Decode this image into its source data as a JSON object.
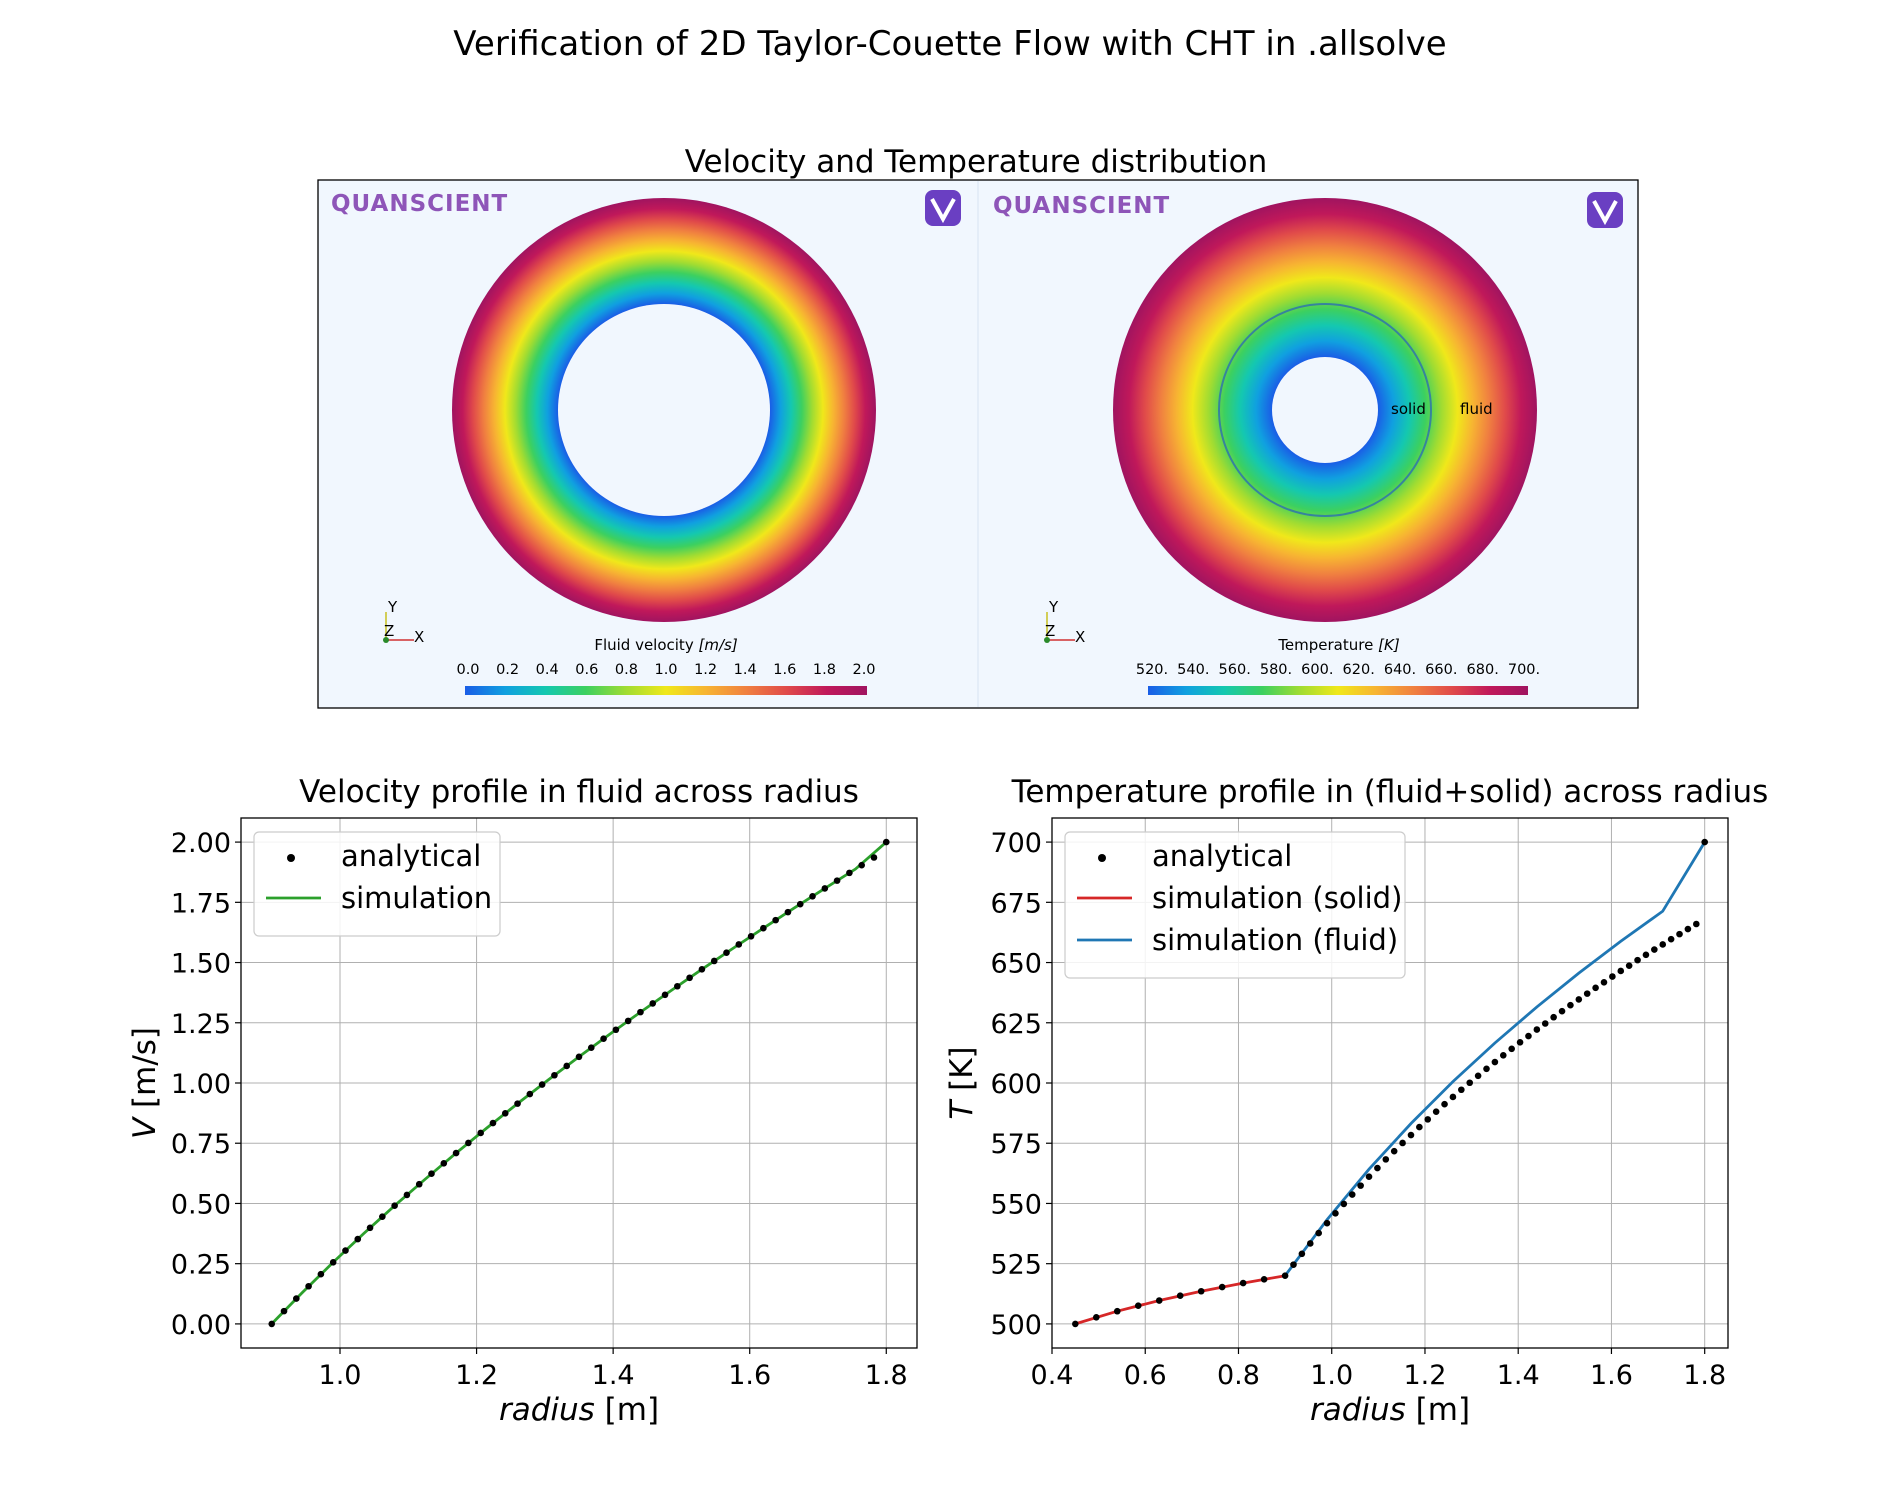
{
  "figure": {
    "title": "Verification of 2D Taylor-Couette Flow with CHT in .allsolve"
  },
  "render_panel": {
    "title": "Velocity and Temperature distribution",
    "left": {
      "brand": "QUANSCIENT",
      "colorbar_label_text": "Fluid velocity",
      "colorbar_label_unit": "[m/s]",
      "colorbar_ticks": [
        "0.0",
        "0.2",
        "0.4",
        "0.6",
        "0.8",
        "1.0",
        "1.2",
        "1.4",
        "1.6",
        "1.8",
        "2.0"
      ],
      "triad": {
        "y": "Y",
        "z": "Z",
        "x": "X"
      }
    },
    "right": {
      "brand": "QUANSCIENT",
      "colorbar_label_text": "Temperature",
      "colorbar_label_unit": "[K]",
      "colorbar_ticks": [
        "520.",
        "540.",
        "560.",
        "580.",
        "600.",
        "620.",
        "640.",
        "660.",
        "680.",
        "700."
      ],
      "region_labels": {
        "solid": "solid",
        "fluid": "fluid"
      },
      "triad": {
        "y": "Y",
        "z": "Z",
        "x": "X"
      }
    },
    "colormap": [
      "#1a5de6",
      "#10a0e0",
      "#14c8b0",
      "#3cd060",
      "#a0dc32",
      "#f0e81a",
      "#f7b432",
      "#f08040",
      "#e04a4a",
      "#c0185a",
      "#a01460"
    ]
  },
  "chart_data": [
    {
      "type": "line",
      "title": "Velocity profile in fluid across radius",
      "xlabel_text": "radius",
      "xlabel_unit": "[m]",
      "ylabel_text": "V",
      "ylabel_unit": "[m/s]",
      "xlim": [
        0.855,
        1.845
      ],
      "ylim": [
        -0.1,
        2.1
      ],
      "xticks": [
        1.0,
        1.2,
        1.4,
        1.6,
        1.8
      ],
      "xtick_labels": [
        "1.0",
        "1.2",
        "1.4",
        "1.6",
        "1.8"
      ],
      "yticks": [
        0.0,
        0.25,
        0.5,
        0.75,
        1.0,
        1.25,
        1.5,
        1.75,
        2.0
      ],
      "ytick_labels": [
        "0.00",
        "0.25",
        "0.50",
        "0.75",
        "1.00",
        "1.25",
        "1.50",
        "1.75",
        "2.00"
      ],
      "grid": true,
      "legend_position": "upper-left",
      "series": [
        {
          "name": "analytical",
          "kind": "scatter",
          "color": "#000000",
          "x": [
            0.9,
            0.918,
            0.936,
            0.954,
            0.972,
            0.99,
            1.008,
            1.026,
            1.044,
            1.062,
            1.08,
            1.098,
            1.116,
            1.134,
            1.152,
            1.17,
            1.188,
            1.206,
            1.224,
            1.242,
            1.26,
            1.278,
            1.296,
            1.314,
            1.332,
            1.35,
            1.368,
            1.386,
            1.404,
            1.422,
            1.44,
            1.458,
            1.476,
            1.494,
            1.512,
            1.53,
            1.548,
            1.566,
            1.584,
            1.602,
            1.62,
            1.638,
            1.656,
            1.674,
            1.692,
            1.71,
            1.728,
            1.746,
            1.764,
            1.782,
            1.8
          ],
          "y": [
            0.0,
            0.0531,
            0.1052,
            0.1563,
            0.2065,
            0.2558,
            0.3043,
            0.352,
            0.3989,
            0.4451,
            0.4907,
            0.5355,
            0.5798,
            0.6235,
            0.6666,
            0.7091,
            0.7511,
            0.7927,
            0.8337,
            0.8743,
            0.9144,
            0.9541,
            0.9934,
            1.0322,
            1.0707,
            1.1088,
            1.1466,
            1.184,
            1.221,
            1.2578,
            1.2942,
            1.3303,
            1.3661,
            1.4016,
            1.4368,
            1.4718,
            1.5065,
            1.5409,
            1.575,
            1.609,
            1.6426,
            1.6761,
            1.7093,
            1.7423,
            1.7751,
            1.8077,
            1.84,
            1.8722,
            1.9042,
            1.936,
            2.0
          ]
        },
        {
          "name": "simulation",
          "kind": "line",
          "color": "#2ca02c",
          "x": [
            0.9,
            0.945,
            0.99,
            1.035,
            1.08,
            1.125,
            1.17,
            1.215,
            1.26,
            1.305,
            1.35,
            1.395,
            1.44,
            1.485,
            1.53,
            1.575,
            1.62,
            1.665,
            1.71,
            1.755,
            1.8
          ],
          "y": [
            0.0,
            0.1308,
            0.2558,
            0.3755,
            0.4907,
            0.6017,
            0.7091,
            0.8133,
            0.9144,
            1.0128,
            1.1088,
            1.2026,
            1.2942,
            1.384,
            1.4718,
            1.558,
            1.6426,
            1.7258,
            1.8077,
            1.8882,
            2.0
          ]
        }
      ]
    },
    {
      "type": "line",
      "title": "Temperature profile in (fluid+solid) across radius",
      "xlabel_text": "radius",
      "xlabel_unit": "[m]",
      "ylabel_text": "T",
      "ylabel_unit": "[K]",
      "xlim": [
        0.4,
        1.85
      ],
      "ylim": [
        490,
        710
      ],
      "xticks": [
        0.4,
        0.6,
        0.8,
        1.0,
        1.2,
        1.4,
        1.6,
        1.8
      ],
      "xtick_labels": [
        "0.4",
        "0.6",
        "0.8",
        "1.0",
        "1.2",
        "1.4",
        "1.6",
        "1.8"
      ],
      "yticks": [
        500,
        525,
        550,
        575,
        600,
        625,
        650,
        675,
        700
      ],
      "ytick_labels": [
        "500",
        "525",
        "550",
        "575",
        "600",
        "625",
        "650",
        "675",
        "700"
      ],
      "grid": true,
      "legend_position": "upper-left",
      "series": [
        {
          "name": "analytical",
          "kind": "scatter",
          "color": "#000000",
          "x": [
            0.45,
            0.495,
            0.54,
            0.585,
            0.63,
            0.675,
            0.72,
            0.765,
            0.81,
            0.855,
            0.9,
            0.918,
            0.936,
            0.954,
            0.972,
            0.99,
            1.008,
            1.026,
            1.044,
            1.062,
            1.08,
            1.098,
            1.116,
            1.134,
            1.152,
            1.17,
            1.188,
            1.206,
            1.224,
            1.242,
            1.26,
            1.278,
            1.296,
            1.314,
            1.332,
            1.35,
            1.368,
            1.386,
            1.404,
            1.422,
            1.44,
            1.458,
            1.476,
            1.494,
            1.512,
            1.53,
            1.548,
            1.566,
            1.584,
            1.602,
            1.62,
            1.638,
            1.656,
            1.674,
            1.692,
            1.71,
            1.728,
            1.746,
            1.764,
            1.782,
            1.8
          ],
          "y": [
            500.0,
            502.75,
            505.26,
            507.57,
            509.71,
            511.7,
            513.56,
            515.31,
            516.96,
            518.52,
            520.0,
            524.6,
            529.1,
            533.4,
            537.7,
            541.8,
            545.9,
            549.8,
            553.7,
            557.4,
            561.1,
            564.7,
            568.3,
            571.7,
            575.1,
            578.4,
            581.7,
            584.9,
            588.1,
            591.2,
            594.2,
            597.2,
            600.1,
            603.0,
            605.9,
            608.7,
            611.5,
            614.2,
            616.9,
            619.5,
            622.2,
            624.7,
            627.3,
            629.8,
            632.3,
            634.7,
            637.1,
            639.5,
            641.8,
            644.2,
            646.5,
            648.7,
            651.0,
            653.2,
            655.4,
            657.5,
            659.7,
            661.8,
            663.9,
            666.0,
            700.0
          ]
        },
        {
          "name": "simulation (solid)",
          "kind": "line",
          "color": "#d62728",
          "x": [
            0.45,
            0.54,
            0.63,
            0.72,
            0.81,
            0.9
          ],
          "y": [
            500.0,
            505.26,
            509.71,
            513.56,
            516.96,
            520.0
          ]
        },
        {
          "name": "simulation (fluid)",
          "kind": "line",
          "color": "#1f77b4",
          "x": [
            0.9,
            0.99,
            1.08,
            1.17,
            1.26,
            1.35,
            1.44,
            1.53,
            1.62,
            1.71,
            1.8
          ],
          "y": [
            520.0,
            543.3,
            564.2,
            583.2,
            600.6,
            616.6,
            631.6,
            645.6,
            658.8,
            671.3,
            700.0
          ]
        }
      ]
    }
  ]
}
